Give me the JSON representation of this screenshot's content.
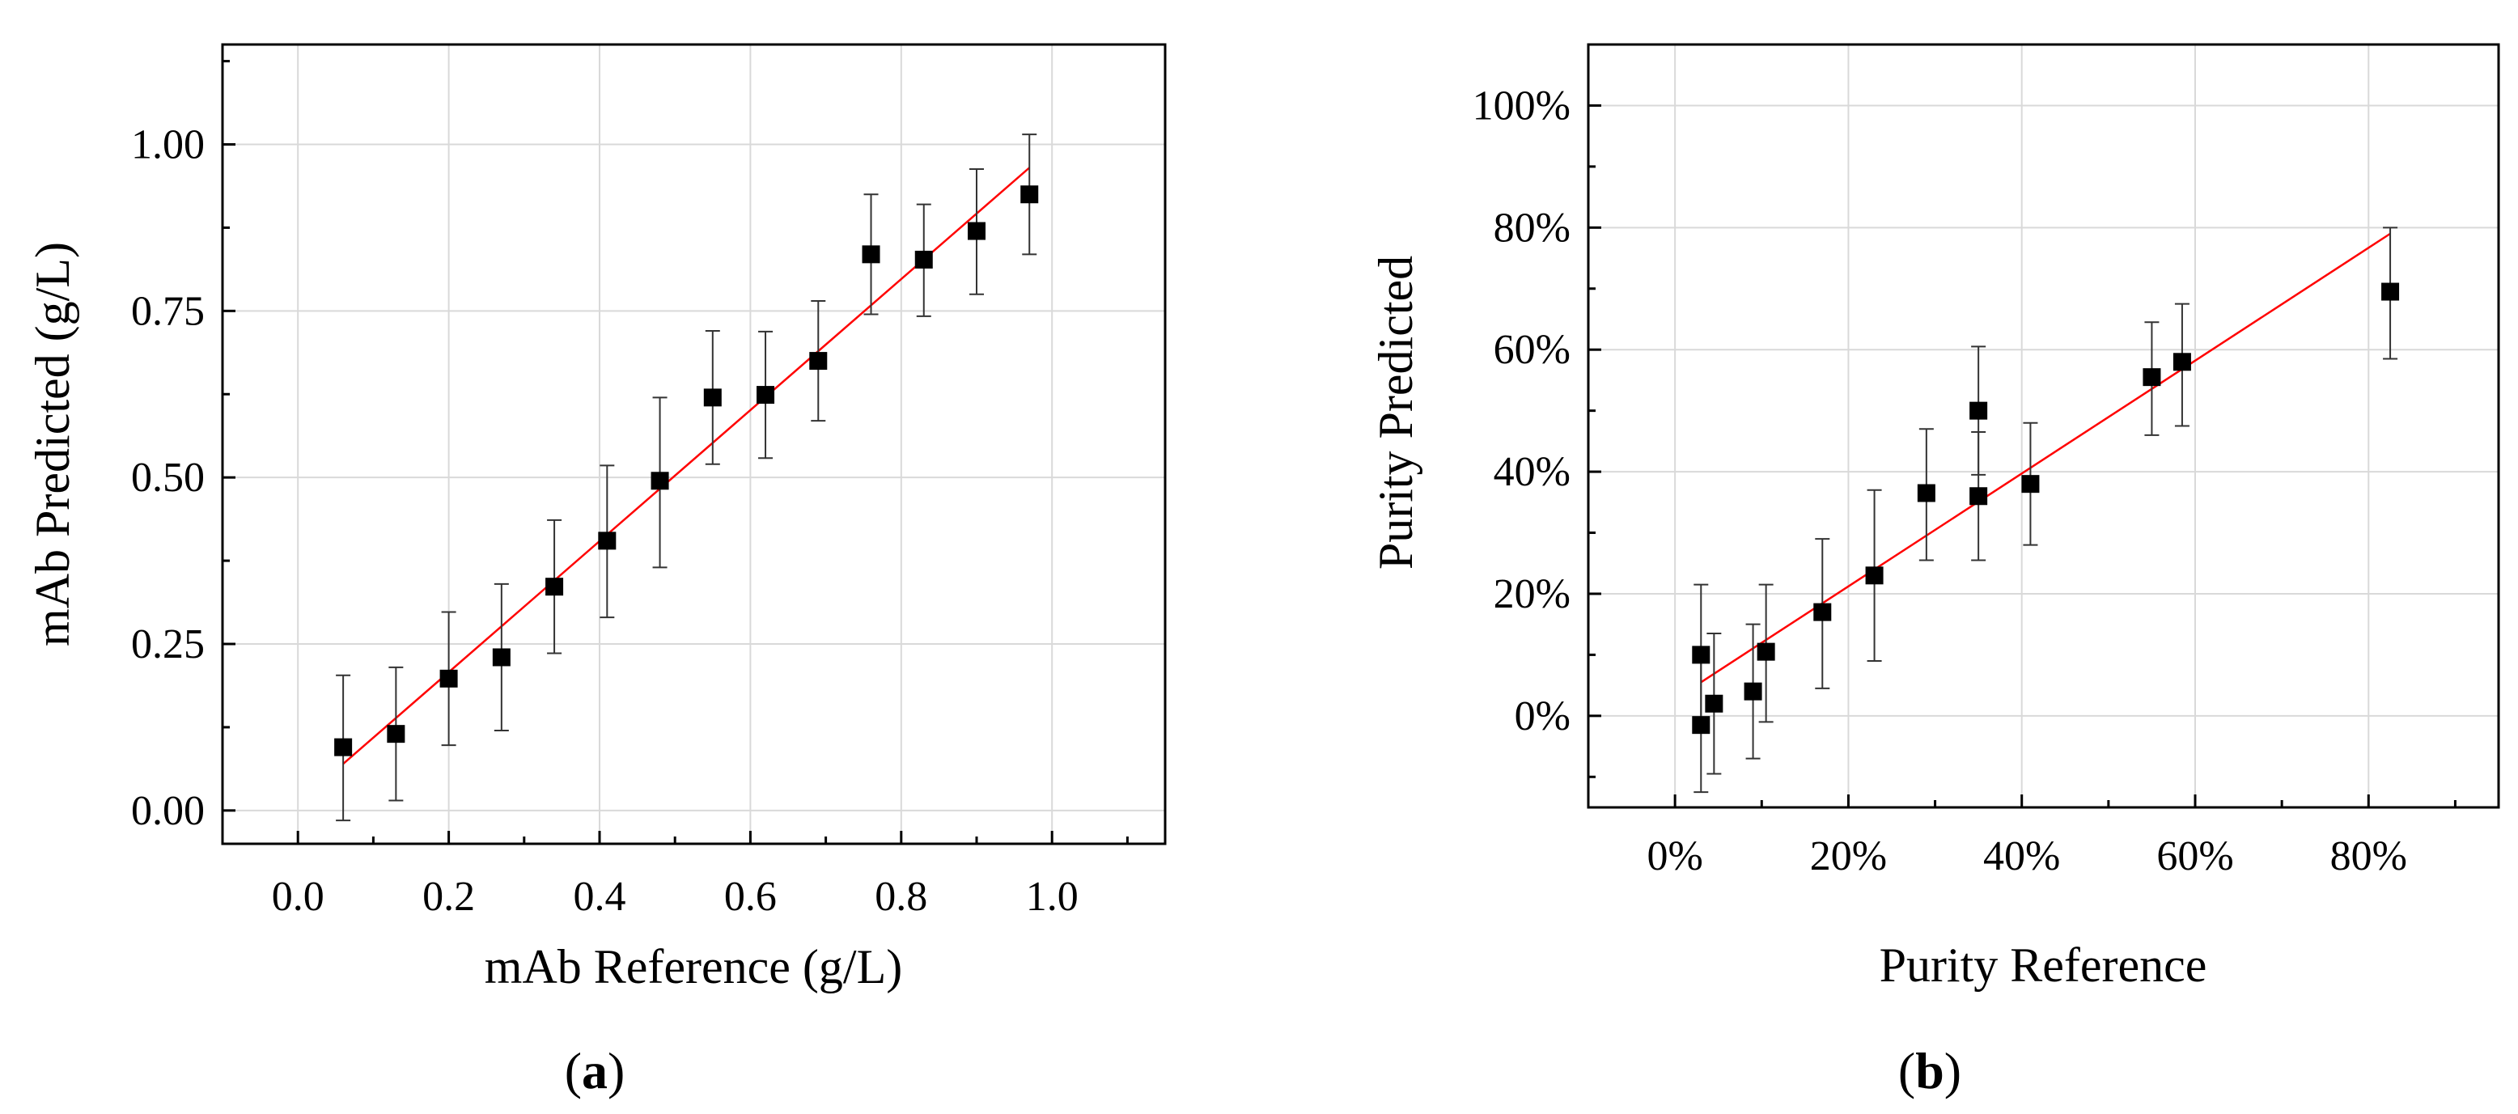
{
  "chart_data": [
    {
      "type": "scatter",
      "panel_label": "a",
      "xlabel": "mAb Reference (g/L)",
      "ylabel": "mAb Predicted (g/L)",
      "xlim": [
        -0.1,
        1.15
      ],
      "ylim": [
        -0.05,
        1.15
      ],
      "grid": true,
      "xticks": [
        0.0,
        0.2,
        0.4,
        0.6,
        0.8,
        1.0
      ],
      "xtick_labels": [
        "0.0",
        "0.2",
        "0.4",
        "0.6",
        "0.8",
        "1.0"
      ],
      "yticks": [
        0.0,
        0.25,
        0.5,
        0.75,
        1.0
      ],
      "ytick_labels": [
        "0.00",
        "0.25",
        "0.50",
        "0.75",
        "1.00"
      ],
      "x": [
        0.06,
        0.13,
        0.2,
        0.27,
        0.34,
        0.41,
        0.48,
        0.55,
        0.62,
        0.69,
        0.76,
        0.83,
        0.9,
        0.97
      ],
      "y": [
        0.095,
        0.115,
        0.198,
        0.23,
        0.336,
        0.405,
        0.495,
        0.62,
        0.624,
        0.675,
        0.835,
        0.827,
        0.87,
        0.925
      ],
      "err_low": [
        0.11,
        0.1,
        0.1,
        0.11,
        0.1,
        0.115,
        0.13,
        0.1,
        0.095,
        0.09,
        0.09,
        0.085,
        0.095,
        0.09
      ],
      "err_high": [
        0.108,
        0.1,
        0.1,
        0.11,
        0.1,
        0.113,
        0.125,
        0.1,
        0.095,
        0.09,
        0.09,
        0.083,
        0.093,
        0.09
      ],
      "fit_line": {
        "x": [
          0.06,
          0.97
        ],
        "y": [
          0.07,
          0.965
        ]
      },
      "colors": {
        "points": "#000000",
        "fit": "#ff0000",
        "grid": "#d9d9d9",
        "axis": "#000000"
      }
    },
    {
      "type": "scatter",
      "panel_label": "b",
      "xlabel": "Purity Reference",
      "ylabel": "Purity Predicted",
      "xlim": [
        -10,
        95
      ],
      "ylim": [
        -15,
        110
      ],
      "grid": true,
      "xticks": [
        0,
        20,
        40,
        60,
        80
      ],
      "xtick_labels": [
        "0%",
        "20%",
        "40%",
        "60%",
        "80%"
      ],
      "yticks": [
        0,
        20,
        40,
        60,
        80,
        100
      ],
      "ytick_labels": [
        "0%",
        "20%",
        "40%",
        "60%",
        "80%",
        "100%"
      ],
      "x": [
        3,
        3,
        4.5,
        9,
        10.5,
        17,
        23,
        29,
        35,
        35,
        41,
        55,
        58.5,
        82.5
      ],
      "y": [
        -1.5,
        10,
        2,
        4,
        10.5,
        17,
        23,
        36.5,
        50,
        36,
        38,
        55.5,
        58,
        69.5
      ],
      "err_low": [
        11,
        11.5,
        11.5,
        11,
        11.5,
        12.5,
        14,
        11,
        10.5,
        10.5,
        10,
        9.5,
        10.5,
        11
      ],
      "err_high": [
        11,
        11.5,
        11.5,
        11,
        11,
        12,
        14,
        10.5,
        10.5,
        10.5,
        10,
        9,
        9.5,
        10.5
      ],
      "fit_line": {
        "x": [
          3,
          82.5
        ],
        "y": [
          5.5,
          79
        ]
      },
      "colors": {
        "points": "#000000",
        "fit": "#ff0000",
        "grid": "#d9d9d9",
        "axis": "#000000"
      }
    }
  ]
}
